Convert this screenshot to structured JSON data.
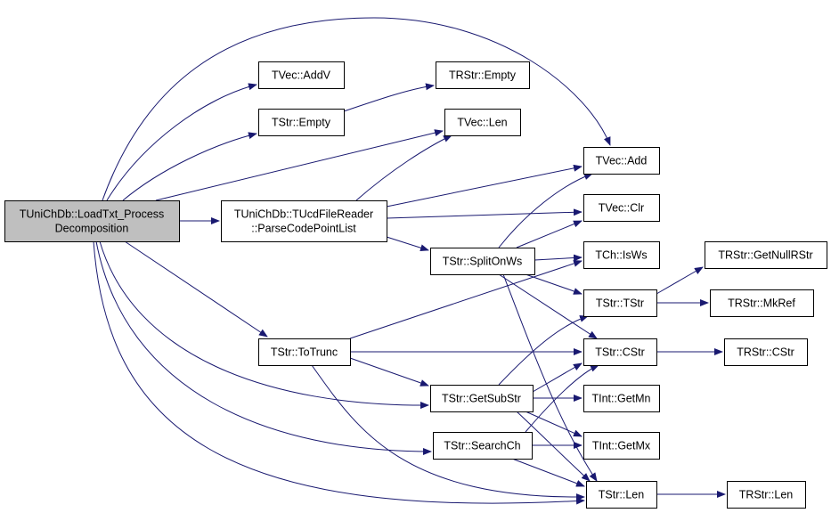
{
  "edge_color": "#191970",
  "root_fill": "#bfbfbf",
  "nodes": {
    "root": [
      "TUniChDb::LoadTxt_Process",
      "Decomposition"
    ],
    "addv": [
      "TVec::AddV"
    ],
    "tstrEmpty": [
      "TStr::Empty"
    ],
    "trstrEmpty": [
      "TRStr::Empty"
    ],
    "tvecLen": [
      "TVec::Len"
    ],
    "parse": [
      "TUniChDb::TUcdFileReader",
      "::ParseCodePointList"
    ],
    "tvecAdd": [
      "TVec::Add"
    ],
    "tvecClr": [
      "TVec::Clr"
    ],
    "split": [
      "TStr::SplitOnWs"
    ],
    "isws": [
      "TCh::IsWs"
    ],
    "nullr": [
      "TRStr::GetNullRStr"
    ],
    "tstrTStr": [
      "TStr::TStr"
    ],
    "mkref": [
      "TRStr::MkRef"
    ],
    "trunc": [
      "TStr::ToTrunc"
    ],
    "cstr": [
      "TStr::CStr"
    ],
    "trcstr": [
      "TRStr::CStr"
    ],
    "substr": [
      "TStr::GetSubStr"
    ],
    "getmn": [
      "TInt::GetMn"
    ],
    "search": [
      "TStr::SearchCh"
    ],
    "getmx": [
      "TInt::GetMx"
    ],
    "len": [
      "TStr::Len"
    ],
    "trlen": [
      "TRStr::Len"
    ]
  },
  "edges": [
    [
      "root",
      "tvecAdd"
    ],
    [
      "root",
      "addv"
    ],
    [
      "root",
      "tstrEmpty"
    ],
    [
      "root",
      "tvecLen"
    ],
    [
      "root",
      "parse"
    ],
    [
      "root",
      "trunc"
    ],
    [
      "root",
      "substr"
    ],
    [
      "root",
      "search"
    ],
    [
      "root",
      "len"
    ],
    [
      "tstrEmpty",
      "trstrEmpty"
    ],
    [
      "parse",
      "tvecLen"
    ],
    [
      "parse",
      "tvecAdd"
    ],
    [
      "parse",
      "tvecClr"
    ],
    [
      "parse",
      "split"
    ],
    [
      "split",
      "tvecAdd"
    ],
    [
      "split",
      "tvecClr"
    ],
    [
      "split",
      "isws"
    ],
    [
      "split",
      "tstrTStr"
    ],
    [
      "split",
      "cstr"
    ],
    [
      "split",
      "len"
    ],
    [
      "tstrTStr",
      "nullr"
    ],
    [
      "tstrTStr",
      "mkref"
    ],
    [
      "trunc",
      "isws"
    ],
    [
      "trunc",
      "cstr"
    ],
    [
      "trunc",
      "substr"
    ],
    [
      "trunc",
      "len"
    ],
    [
      "cstr",
      "trcstr"
    ],
    [
      "substr",
      "tstrTStr"
    ],
    [
      "substr",
      "cstr"
    ],
    [
      "substr",
      "getmn"
    ],
    [
      "substr",
      "getmx"
    ],
    [
      "substr",
      "len"
    ],
    [
      "search",
      "cstr"
    ],
    [
      "search",
      "getmx"
    ],
    [
      "search",
      "len"
    ],
    [
      "len",
      "trlen"
    ]
  ]
}
